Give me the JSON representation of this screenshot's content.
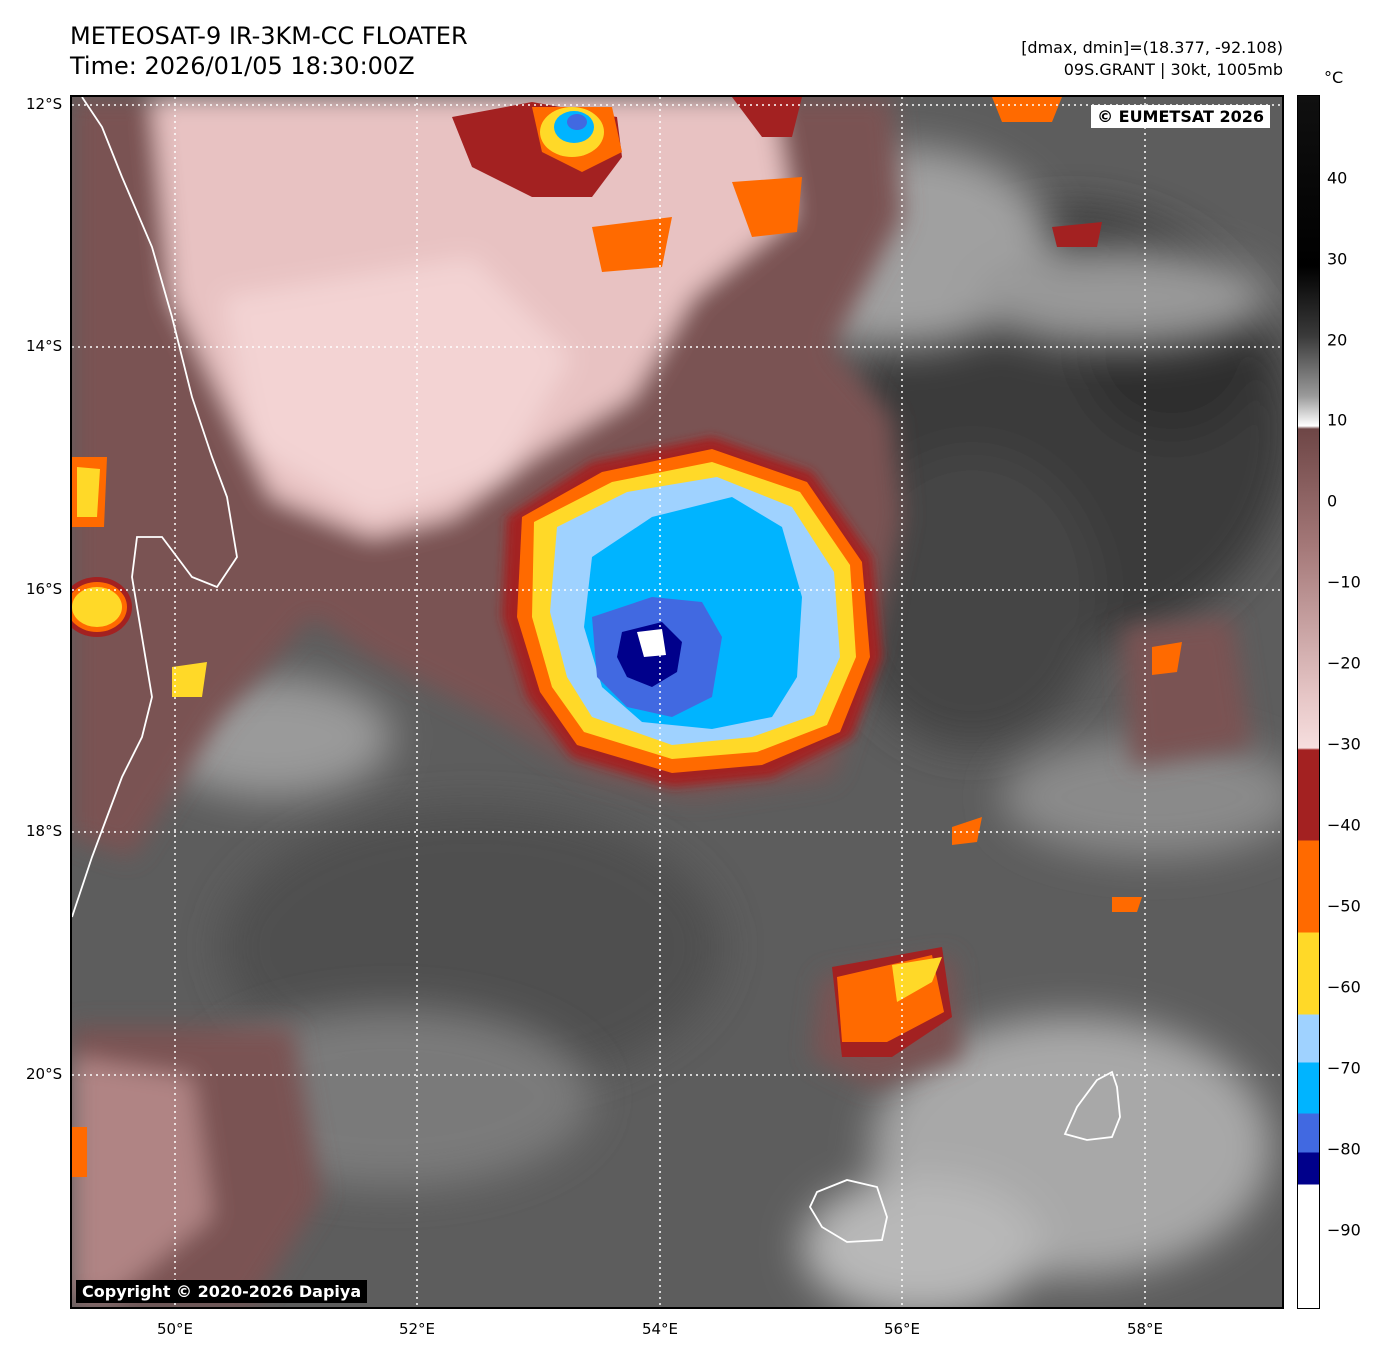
{
  "header": {
    "title_line1": "METEOSAT-9 IR-3KM-CC FLOATER",
    "title_line2": "Time: 2026/01/05 18:30:00Z",
    "info_line1": "[dmax, dmin]=(18.377, -92.108)",
    "info_line2": "09S.GRANT | 30kt, 1005mb"
  },
  "map": {
    "credit_top": "© EUMETSAT 2026",
    "credit_bottom": "Copyright © 2020-2026 Dapiya",
    "lat_labels": [
      "12°S",
      "14°S",
      "16°S",
      "18°S",
      "20°S"
    ],
    "lon_labels": [
      "50°E",
      "52°E",
      "54°E",
      "56°E",
      "58°E"
    ]
  },
  "colorbar": {
    "unit": "°C",
    "ticks": [
      "40",
      "30",
      "20",
      "10",
      "0",
      "−10",
      "−20",
      "−30",
      "−40",
      "−50",
      "−60",
      "−70",
      "−80",
      "−90"
    ],
    "colors": {
      "warm_black": "#000000",
      "white": "#ffffff",
      "brown_gray": "#7a5353",
      "pink": "#f6d6d6",
      "dark_red": "#a32121",
      "orange": "#ff6a00",
      "yellow": "#ffd928",
      "light_blue": "#9fd2ff",
      "cyan": "#00b4ff",
      "royal_blue": "#4169e1",
      "navy": "#00008b"
    }
  }
}
